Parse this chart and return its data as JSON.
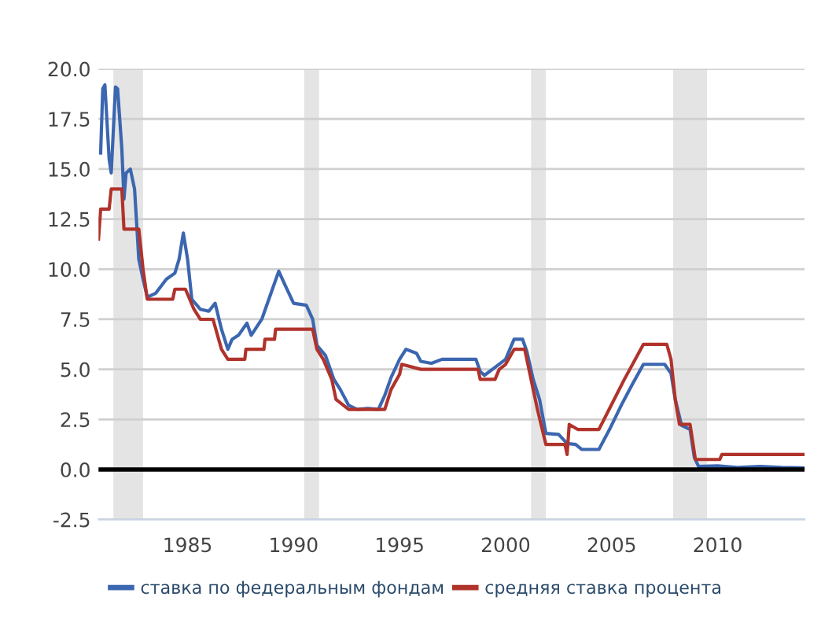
{
  "chart_data": {
    "type": "line",
    "series": [
      {
        "name": "ставка по федеральным фондам",
        "color": "#3b66b0",
        "x": [
          1980.9,
          1981.0,
          1981.1,
          1981.3,
          1981.4,
          1981.6,
          1981.7,
          1981.9,
          1982.0,
          1982.1,
          1982.3,
          1982.5,
          1982.7,
          1982.9,
          1983.1,
          1983.5,
          1984.0,
          1984.4,
          1984.6,
          1984.8,
          1985.0,
          1985.2,
          1985.6,
          1986.0,
          1986.3,
          1986.6,
          1986.9,
          1987.1,
          1987.4,
          1987.8,
          1988.0,
          1988.5,
          1989.0,
          1989.3,
          1989.6,
          1990.0,
          1990.6,
          1990.9,
          1991.1,
          1991.5,
          1991.9,
          1992.2,
          1992.6,
          1993.0,
          1993.5,
          1994.0,
          1994.3,
          1994.6,
          1995.0,
          1995.3,
          1995.8,
          1996.0,
          1996.5,
          1997.0,
          1998.0,
          1998.6,
          1998.8,
          1999.0,
          1999.5,
          2000.0,
          2000.4,
          2000.8,
          2001.0,
          2001.3,
          2001.6,
          2001.9,
          2002.5,
          2002.9,
          2003.3,
          2003.6,
          2004.4,
          2004.9,
          2005.5,
          2006.0,
          2006.5,
          2007.5,
          2007.8,
          2008.0,
          2008.3,
          2008.7,
          2008.9,
          2009.1,
          2010.0,
          2011.0,
          2012.0,
          2013.0,
          2014.1
        ],
        "values": [
          15.8,
          19.0,
          19.2,
          15.5,
          14.8,
          19.1,
          19.0,
          16.0,
          13.5,
          14.8,
          15.0,
          14.0,
          10.5,
          9.5,
          8.6,
          8.8,
          9.5,
          9.8,
          10.5,
          11.8,
          10.5,
          8.5,
          8.0,
          7.9,
          8.3,
          7.0,
          6.0,
          6.5,
          6.7,
          7.3,
          6.7,
          7.5,
          9.0,
          9.9,
          9.2,
          8.3,
          8.2,
          7.5,
          6.2,
          5.7,
          4.5,
          4.0,
          3.2,
          3.0,
          3.05,
          3.0,
          3.7,
          4.6,
          5.5,
          6.0,
          5.8,
          5.4,
          5.3,
          5.5,
          5.5,
          5.5,
          4.9,
          4.7,
          5.1,
          5.5,
          6.5,
          6.5,
          5.9,
          4.5,
          3.5,
          1.8,
          1.75,
          1.3,
          1.25,
          1.0,
          1.0,
          2.0,
          3.3,
          4.3,
          5.25,
          5.25,
          4.8,
          3.5,
          2.2,
          2.0,
          0.6,
          0.15,
          0.18,
          0.1,
          0.15,
          0.1,
          0.08
        ]
      },
      {
        "name": "средняя ставка процента",
        "color": "#b0332b",
        "x": [
          1980.8,
          1980.9,
          1981.3,
          1981.4,
          1981.9,
          1982.0,
          1982.7,
          1982.9,
          1983.1,
          1984.3,
          1984.4,
          1984.9,
          1985.3,
          1985.6,
          1986.2,
          1986.6,
          1986.9,
          1987.7,
          1987.75,
          1988.6,
          1988.65,
          1989.1,
          1989.15,
          1990.9,
          1991.1,
          1991.4,
          1991.8,
          1992.0,
          1992.6,
          1994.3,
          1994.6,
          1995.0,
          1995.1,
          1996.0,
          1998.7,
          1998.8,
          1999.5,
          1999.7,
          2000.0,
          2000.4,
          2000.9,
          2001.1,
          2001.5,
          2001.9,
          2002.8,
          2002.9,
          2003.0,
          2003.4,
          2004.4,
          2005.0,
          2005.6,
          2006.5,
          2007.6,
          2007.8,
          2008.0,
          2008.2,
          2008.7,
          2008.95,
          2010.1,
          2010.2,
          2014.1
        ],
        "values": [
          11.5,
          13.0,
          13.0,
          14.0,
          14.0,
          12.0,
          12.0,
          10.0,
          8.5,
          8.5,
          9.0,
          9.0,
          8.0,
          7.5,
          7.5,
          6.0,
          5.5,
          5.5,
          6.0,
          6.0,
          6.5,
          6.5,
          7.0,
          7.0,
          6.0,
          5.5,
          4.5,
          3.5,
          3.0,
          3.0,
          4.0,
          4.75,
          5.25,
          5.0,
          5.0,
          4.5,
          4.5,
          5.0,
          5.25,
          6.0,
          6.0,
          5.0,
          3.0,
          1.25,
          1.25,
          0.75,
          2.25,
          2.0,
          2.0,
          3.25,
          4.5,
          6.25,
          6.25,
          5.5,
          3.5,
          2.25,
          2.25,
          0.5,
          0.5,
          0.75,
          0.75
        ]
      }
    ],
    "xlim": [
      1980.8,
      2014.1
    ],
    "xticks": [
      1985,
      1990,
      1995,
      2000,
      2005,
      2010
    ],
    "ylim": [
      -2.5,
      20.0
    ],
    "yticks": [
      {
        "value": -2.5,
        "label": "-2.5"
      },
      {
        "value": 0,
        "label": "0.0"
      },
      {
        "value": 2.5,
        "label": "2.5"
      },
      {
        "value": 5,
        "label": "5.0"
      },
      {
        "value": 7.5,
        "label": "7.5"
      },
      {
        "value": 10,
        "label": "10.0"
      },
      {
        "value": 12.5,
        "label": "12.5"
      },
      {
        "value": 15,
        "label": "15.0"
      },
      {
        "value": 17.5,
        "label": "17.5"
      },
      {
        "value": 20,
        "label": "20.0"
      }
    ],
    "grid": "y",
    "legend": "bottom",
    "ref_lines": [
      {
        "axis": "y",
        "value": 0,
        "color": "#000000"
      }
    ],
    "bands": [
      {
        "axis": "x",
        "from": 1981.5,
        "to": 1982.9,
        "color": "#e4e4e4"
      },
      {
        "axis": "x",
        "from": 1990.5,
        "to": 1991.2,
        "color": "#e4e4e4"
      },
      {
        "axis": "x",
        "from": 2001.2,
        "to": 2001.9,
        "color": "#e4e4e4"
      },
      {
        "axis": "x",
        "from": 2007.9,
        "to": 2009.5,
        "color": "#e4e4e4"
      }
    ]
  }
}
